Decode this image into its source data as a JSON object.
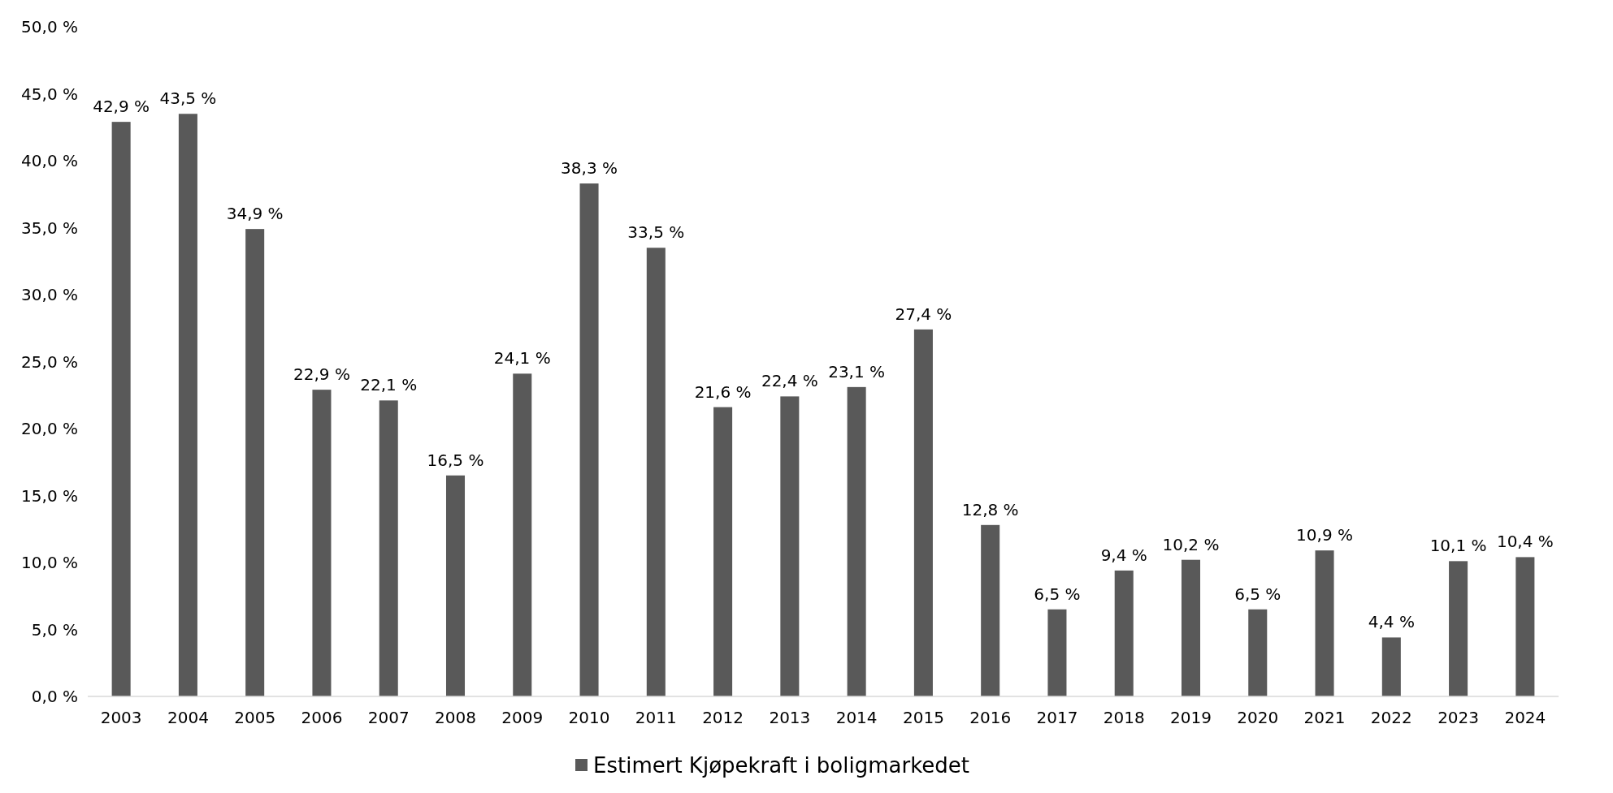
{
  "chart_data": {
    "type": "bar",
    "categories": [
      "2003",
      "2004",
      "2005",
      "2006",
      "2007",
      "2008",
      "2009",
      "2010",
      "2011",
      "2012",
      "2013",
      "2014",
      "2015",
      "2016",
      "2017",
      "2018",
      "2019",
      "2020",
      "2021",
      "2022",
      "2023",
      "2024"
    ],
    "series": [
      {
        "name": "Estimert Kjøpekraft i boligmarkedet",
        "color": "#595959",
        "values": [
          42.9,
          43.5,
          34.9,
          22.9,
          22.1,
          16.5,
          24.1,
          38.3,
          33.5,
          21.6,
          22.4,
          23.1,
          27.4,
          12.8,
          6.5,
          9.4,
          10.2,
          6.5,
          10.9,
          4.4,
          10.1,
          10.4
        ],
        "value_labels": [
          "42,9 %",
          "43,5 %",
          "34,9 %",
          "22,9 %",
          "22,1 %",
          "16,5 %",
          "24,1 %",
          "38,3 %",
          "33,5 %",
          "21,6 %",
          "22,4 %",
          "23,1 %",
          "27,4 %",
          "12,8 %",
          "6,5 %",
          "9,4 %",
          "10,2 %",
          "6,5 %",
          "10,9 %",
          "4,4 %",
          "10,1 %",
          "10,4 %"
        ]
      }
    ],
    "ylim": [
      0,
      50
    ],
    "yticks": [
      {
        "value": 0,
        "label": "0,0 %"
      },
      {
        "value": 5,
        "label": "5,0 %"
      },
      {
        "value": 10,
        "label": "10,0 %"
      },
      {
        "value": 15,
        "label": "15,0 %"
      },
      {
        "value": 20,
        "label": "20,0 %"
      },
      {
        "value": 25,
        "label": "25,0 %"
      },
      {
        "value": 30,
        "label": "30,0 %"
      },
      {
        "value": 35,
        "label": "35,0 %"
      },
      {
        "value": 40,
        "label": "40,0 %"
      },
      {
        "value": 45,
        "label": "45,0 %"
      },
      {
        "value": 50,
        "label": "50,0 %"
      }
    ],
    "grid": false,
    "legend": "bottom"
  }
}
